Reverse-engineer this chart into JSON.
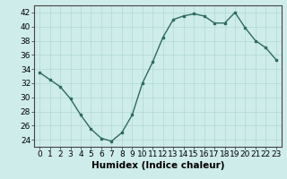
{
  "x": [
    0,
    1,
    2,
    3,
    4,
    5,
    6,
    7,
    8,
    9,
    10,
    11,
    12,
    13,
    14,
    15,
    16,
    17,
    18,
    19,
    20,
    21,
    22,
    23
  ],
  "y": [
    33.5,
    32.5,
    31.5,
    29.8,
    27.5,
    25.5,
    24.2,
    23.8,
    25.0,
    27.5,
    32.0,
    35.0,
    38.5,
    41.0,
    41.5,
    41.8,
    41.5,
    40.5,
    40.5,
    42.0,
    39.8,
    38.0,
    37.0,
    35.3
  ],
  "xlabel": "Humidex (Indice chaleur)",
  "xlim": [
    -0.5,
    23.5
  ],
  "ylim": [
    23,
    43
  ],
  "yticks": [
    24,
    26,
    28,
    30,
    32,
    34,
    36,
    38,
    40,
    42
  ],
  "xticks": [
    0,
    1,
    2,
    3,
    4,
    5,
    6,
    7,
    8,
    9,
    10,
    11,
    12,
    13,
    14,
    15,
    16,
    17,
    18,
    19,
    20,
    21,
    22,
    23
  ],
  "line_color": "#2e6b5e",
  "bg_color": "#ceecea",
  "grid_color": "#b0d8d4",
  "tick_label_fontsize": 6.5,
  "xlabel_fontsize": 7.5
}
